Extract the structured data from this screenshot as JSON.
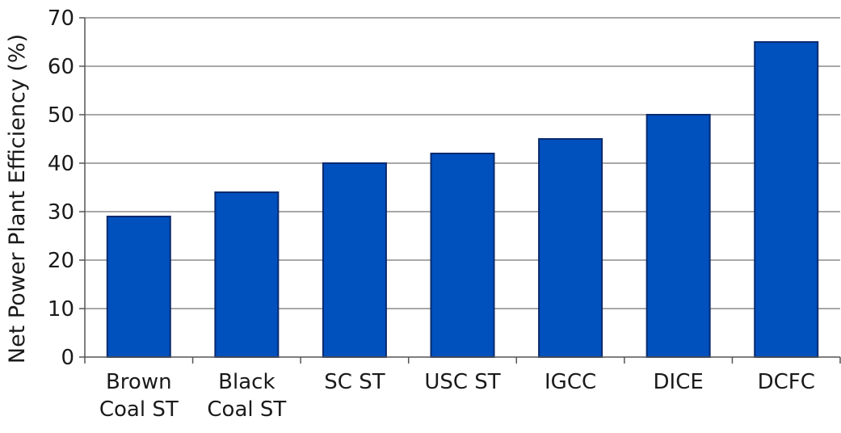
{
  "chart_data": {
    "type": "bar",
    "title": "",
    "xlabel": "",
    "ylabel": "Net Power Plant Efficiency (%)",
    "ylim": [
      0,
      70
    ],
    "yticks": [
      0,
      10,
      20,
      30,
      40,
      50,
      60,
      70
    ],
    "grid": true,
    "legend": "none",
    "categories": [
      [
        "Brown",
        "Coal ST"
      ],
      [
        "Black",
        "Coal ST"
      ],
      [
        "SC ST"
      ],
      [
        "USC ST"
      ],
      [
        "IGCC"
      ],
      [
        "DICE"
      ],
      [
        "DCFC"
      ]
    ],
    "values": [
      29,
      34,
      40,
      42,
      45,
      50,
      65
    ],
    "colors": {
      "bar_fill": "#0050be",
      "bar_stroke": "#0a2a6e",
      "grid": "#8c8c8c",
      "axis": "#555555"
    }
  }
}
